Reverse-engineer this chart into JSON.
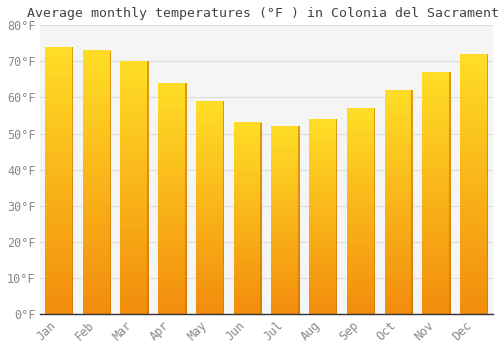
{
  "title": "Average monthly temperatures (°F ) in Colonia del Sacramento",
  "months": [
    "Jan",
    "Feb",
    "Mar",
    "Apr",
    "May",
    "Jun",
    "Jul",
    "Aug",
    "Sep",
    "Oct",
    "Nov",
    "Dec"
  ],
  "values": [
    74,
    73,
    70,
    64,
    59,
    53,
    52,
    54,
    57,
    62,
    67,
    72
  ],
  "bar_color_main": "#FFA500",
  "bar_color_light": "#FFD050",
  "bar_color_dark": "#E08000",
  "background_color": "#FFFFFF",
  "plot_bg_color": "#F5F5F5",
  "grid_color": "#DDDDDD",
  "ylim": [
    0,
    80
  ],
  "yticks": [
    0,
    10,
    20,
    30,
    40,
    50,
    60,
    70,
    80
  ],
  "ytick_labels": [
    "0°F",
    "10°F",
    "20°F",
    "30°F",
    "40°F",
    "50°F",
    "60°F",
    "70°F",
    "80°F"
  ],
  "title_fontsize": 9.5,
  "tick_fontsize": 8.5,
  "tick_color": "#888888",
  "title_color": "#444444",
  "font_family": "monospace",
  "bar_width": 0.75
}
